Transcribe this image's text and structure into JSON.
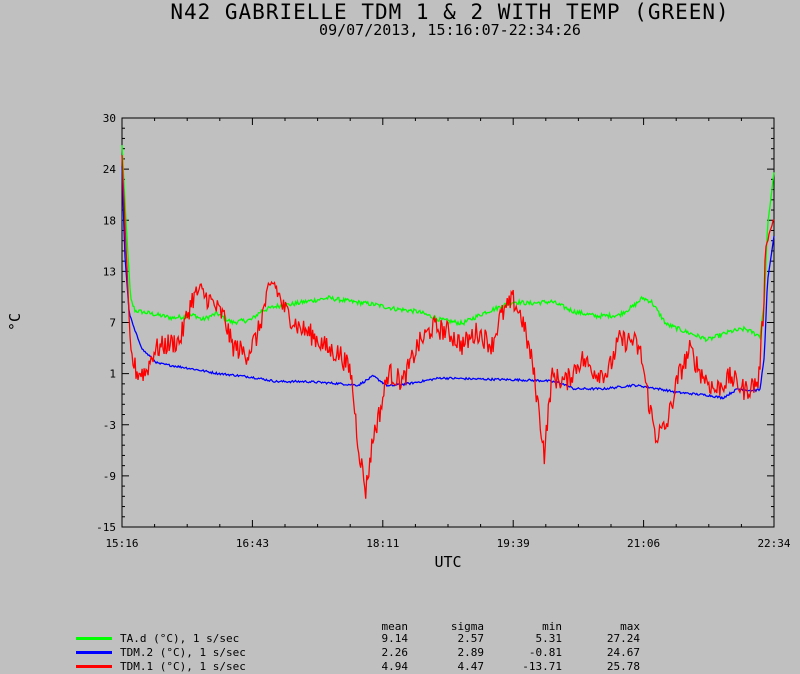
{
  "title": "N42 GABRIELLE TDM 1 & 2 WITH TEMP (GREEN)",
  "subtitle": "09/07/2013, 15:16:07-22:34:26",
  "chart_data": {
    "type": "line",
    "title": "N42 GABRIELLE TDM 1 & 2 WITH TEMP (GREEN)",
    "subtitle": "09/07/2013, 15:16:07-22:34:26",
    "xlabel": "UTC",
    "ylabel": "°C",
    "x_ticks": [
      "15:16",
      "16:43",
      "18:11",
      "19:39",
      "21:06",
      "22:34"
    ],
    "y_ticks": [
      30,
      24,
      18,
      13,
      7,
      1,
      -3,
      -9,
      -15
    ],
    "ylim": [
      -15,
      30
    ],
    "grid": false,
    "legend_position": "bottom",
    "stats_columns": [
      "mean",
      "sigma",
      "min",
      "max"
    ],
    "series": [
      {
        "name": "TA.d (°C), 1 s/sec",
        "color": "#00ff00",
        "stats": [
          "9.14",
          "2.57",
          "5.31",
          "27.24"
        ],
        "noise": 0.25,
        "points": [
          [
            "15:16",
            27
          ],
          [
            "15:19",
            18
          ],
          [
            "15:22",
            10
          ],
          [
            "15:25",
            8.8
          ],
          [
            "15:35",
            8.5
          ],
          [
            "15:50",
            8.0
          ],
          [
            "16:05",
            8.3
          ],
          [
            "16:10",
            7.8
          ],
          [
            "16:20",
            8.5
          ],
          [
            "16:30",
            7.5
          ],
          [
            "16:43",
            7.8
          ],
          [
            "16:50",
            8.8
          ],
          [
            "17:00",
            9.3
          ],
          [
            "17:10",
            9.5
          ],
          [
            "17:20",
            9.8
          ],
          [
            "17:35",
            10.2
          ],
          [
            "17:50",
            9.8
          ],
          [
            "18:05",
            9.5
          ],
          [
            "18:20",
            9.0
          ],
          [
            "18:35",
            8.7
          ],
          [
            "18:50",
            7.8
          ],
          [
            "19:05",
            7.4
          ],
          [
            "19:20",
            8.6
          ],
          [
            "19:30",
            9.2
          ],
          [
            "19:39",
            9.8
          ],
          [
            "19:50",
            9.6
          ],
          [
            "20:05",
            9.8
          ],
          [
            "20:20",
            8.7
          ],
          [
            "20:35",
            8.2
          ],
          [
            "20:50",
            8.3
          ],
          [
            "21:00",
            9.3
          ],
          [
            "21:06",
            10.2
          ],
          [
            "21:12",
            9.8
          ],
          [
            "21:22",
            7.3
          ],
          [
            "21:35",
            6.5
          ],
          [
            "21:50",
            5.6
          ],
          [
            "22:05",
            6.5
          ],
          [
            "22:15",
            6.8
          ],
          [
            "22:25",
            6.0
          ],
          [
            "22:28",
            10
          ],
          [
            "22:30",
            18
          ],
          [
            "22:34",
            24
          ]
        ]
      },
      {
        "name": "TDM.2 (°C), 1 s/sec",
        "color": "#0000ff",
        "stats": [
          "2.26",
          "2.89",
          "-0.81",
          "24.67"
        ],
        "noise": 0.12,
        "points": [
          [
            "15:16",
            24.7
          ],
          [
            "15:18",
            15
          ],
          [
            "15:21",
            8.5
          ],
          [
            "15:25",
            6.5
          ],
          [
            "15:30",
            4.5
          ],
          [
            "15:40",
            3.0
          ],
          [
            "16:00",
            2.5
          ],
          [
            "16:20",
            1.9
          ],
          [
            "16:43",
            1.5
          ],
          [
            "17:00",
            1.0
          ],
          [
            "17:20",
            1.0
          ],
          [
            "17:40",
            0.8
          ],
          [
            "17:55",
            0.6
          ],
          [
            "18:05",
            1.6
          ],
          [
            "18:15",
            0.5
          ],
          [
            "18:30",
            0.8
          ],
          [
            "18:50",
            1.4
          ],
          [
            "19:10",
            1.3
          ],
          [
            "19:39",
            1.2
          ],
          [
            "20:00",
            1.1
          ],
          [
            "20:10",
            0.9
          ],
          [
            "20:20",
            0.2
          ],
          [
            "20:40",
            0.2
          ],
          [
            "21:00",
            0.6
          ],
          [
            "21:10",
            0.4
          ],
          [
            "21:30",
            -0.2
          ],
          [
            "21:50",
            -0.5
          ],
          [
            "22:00",
            -0.8
          ],
          [
            "22:10",
            0.2
          ],
          [
            "22:20",
            0.0
          ],
          [
            "22:25",
            0.1
          ],
          [
            "22:28",
            4
          ],
          [
            "22:30",
            12
          ],
          [
            "22:34",
            17
          ]
        ]
      },
      {
        "name": "TDM.1 (°C), 1 s/sec",
        "color": "#ff0000",
        "stats": [
          "4.94",
          "4.47",
          "-13.71",
          "25.78"
        ],
        "noise": 1.2,
        "points": [
          [
            "15:16",
            25.8
          ],
          [
            "15:19",
            15
          ],
          [
            "15:22",
            4
          ],
          [
            "15:26",
            2
          ],
          [
            "15:32",
            2
          ],
          [
            "15:38",
            4.5
          ],
          [
            "15:45",
            5
          ],
          [
            "15:55",
            5.5
          ],
          [
            "16:03",
            10
          ],
          [
            "16:08",
            11
          ],
          [
            "16:15",
            10
          ],
          [
            "16:25",
            8
          ],
          [
            "16:30",
            5
          ],
          [
            "16:40",
            4
          ],
          [
            "16:47",
            6
          ],
          [
            "16:53",
            10
          ],
          [
            "16:58",
            12
          ],
          [
            "17:05",
            9
          ],
          [
            "17:15",
            7
          ],
          [
            "17:25",
            6
          ],
          [
            "17:35",
            4.5
          ],
          [
            "17:43",
            4
          ],
          [
            "17:50",
            2
          ],
          [
            "17:55",
            -6
          ],
          [
            "18:00",
            -11
          ],
          [
            "18:05",
            -5
          ],
          [
            "18:10",
            -2
          ],
          [
            "18:15",
            2
          ],
          [
            "18:25",
            1
          ],
          [
            "18:35",
            5
          ],
          [
            "18:45",
            7
          ],
          [
            "18:55",
            6.5
          ],
          [
            "19:05",
            5
          ],
          [
            "19:15",
            6.5
          ],
          [
            "19:25",
            5
          ],
          [
            "19:30",
            8
          ],
          [
            "19:39",
            10
          ],
          [
            "19:45",
            8
          ],
          [
            "19:52",
            3
          ],
          [
            "19:57",
            -3
          ],
          [
            "20:00",
            -7
          ],
          [
            "20:05",
            1.5
          ],
          [
            "20:15",
            1
          ],
          [
            "20:25",
            3.5
          ],
          [
            "20:35",
            2
          ],
          [
            "20:43",
            2
          ],
          [
            "20:50",
            5.5
          ],
          [
            "21:00",
            5.5
          ],
          [
            "21:05",
            4
          ],
          [
            "21:10",
            -1
          ],
          [
            "21:15",
            -5
          ],
          [
            "21:22",
            -4
          ],
          [
            "21:30",
            1.5
          ],
          [
            "21:38",
            4.5
          ],
          [
            "21:45",
            2
          ],
          [
            "21:55",
            0
          ],
          [
            "22:05",
            1.5
          ],
          [
            "22:15",
            0
          ],
          [
            "22:24",
            1
          ],
          [
            "22:27",
            8
          ],
          [
            "22:29",
            16
          ],
          [
            "22:34",
            19
          ]
        ]
      }
    ]
  }
}
